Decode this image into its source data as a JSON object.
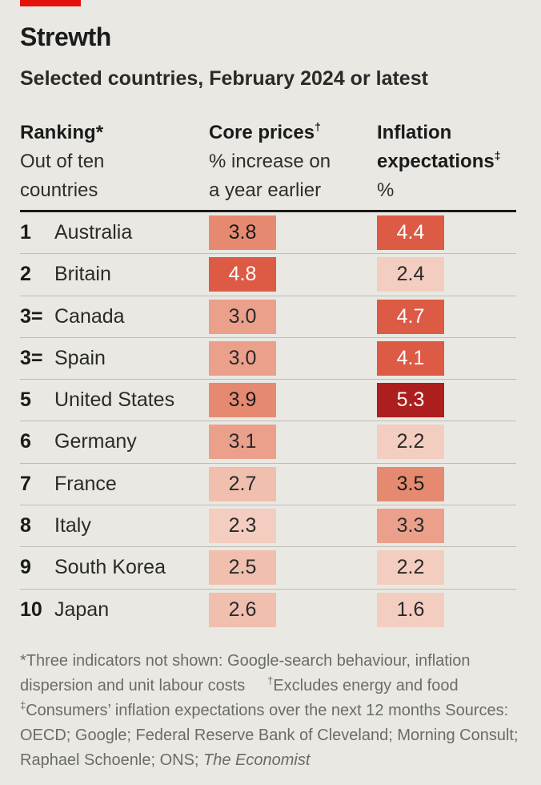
{
  "title": "Strewth",
  "subtitle": "Selected countries, February 2024 or latest",
  "columns": {
    "ranking": {
      "title": "Ranking",
      "mark": "*",
      "line2": "Out of ten",
      "line3": "countries"
    },
    "core": {
      "title": "Core prices",
      "mark": "†",
      "line2": "% increase on",
      "line3": "a year earlier"
    },
    "inflation": {
      "title": "Inflation",
      "title2": "expectations",
      "mark": "‡",
      "line3": "%"
    }
  },
  "colors": {
    "accent": "#e3120b",
    "scale": [
      "#f3cdbf",
      "#f0bfae",
      "#eba08b",
      "#e58a71",
      "#dd5a44",
      "#ad1e1e"
    ]
  },
  "footnote": {
    "p1": "*Three indicators not shown: Google-search behaviour, inflation dispersion and unit labour costs",
    "mark2": "†",
    "p2": "Excludes energy and food",
    "mark3": "‡",
    "p3": "Consumers’ inflation expectations over the next 12 months",
    "sources": "Sources: OECD; Google; Federal Reserve Bank of Cleveland; Morning Consult; Raphael Schoenle; ONS;",
    "sources_italic": "The Economist"
  },
  "chart_data": {
    "type": "table",
    "title": "Strewth",
    "subtitle": "Selected countries, February 2024 or latest",
    "columns": [
      "Ranking",
      "Core prices",
      "Inflation expectations"
    ],
    "rows": [
      {
        "rank": "1",
        "country": "Australia",
        "core": "3.8",
        "infl": "4.4"
      },
      {
        "rank": "2",
        "country": "Britain",
        "core": "4.8",
        "infl": "2.4"
      },
      {
        "rank": "3=",
        "country": "Canada",
        "core": "3.0",
        "infl": "4.7"
      },
      {
        "rank": "3=",
        "country": "Spain",
        "core": "3.0",
        "infl": "4.1"
      },
      {
        "rank": "5",
        "country": "United States",
        "core": "3.9",
        "infl": "5.3"
      },
      {
        "rank": "6",
        "country": "Germany",
        "core": "3.1",
        "infl": "2.2"
      },
      {
        "rank": "7",
        "country": "France",
        "core": "2.7",
        "infl": "3.5"
      },
      {
        "rank": "8",
        "country": "Italy",
        "core": "2.3",
        "infl": "3.3"
      },
      {
        "rank": "9",
        "country": "South Korea",
        "core": "2.5",
        "infl": "2.2"
      },
      {
        "rank": "10",
        "country": "Japan",
        "core": "2.6",
        "infl": "1.6"
      }
    ]
  }
}
